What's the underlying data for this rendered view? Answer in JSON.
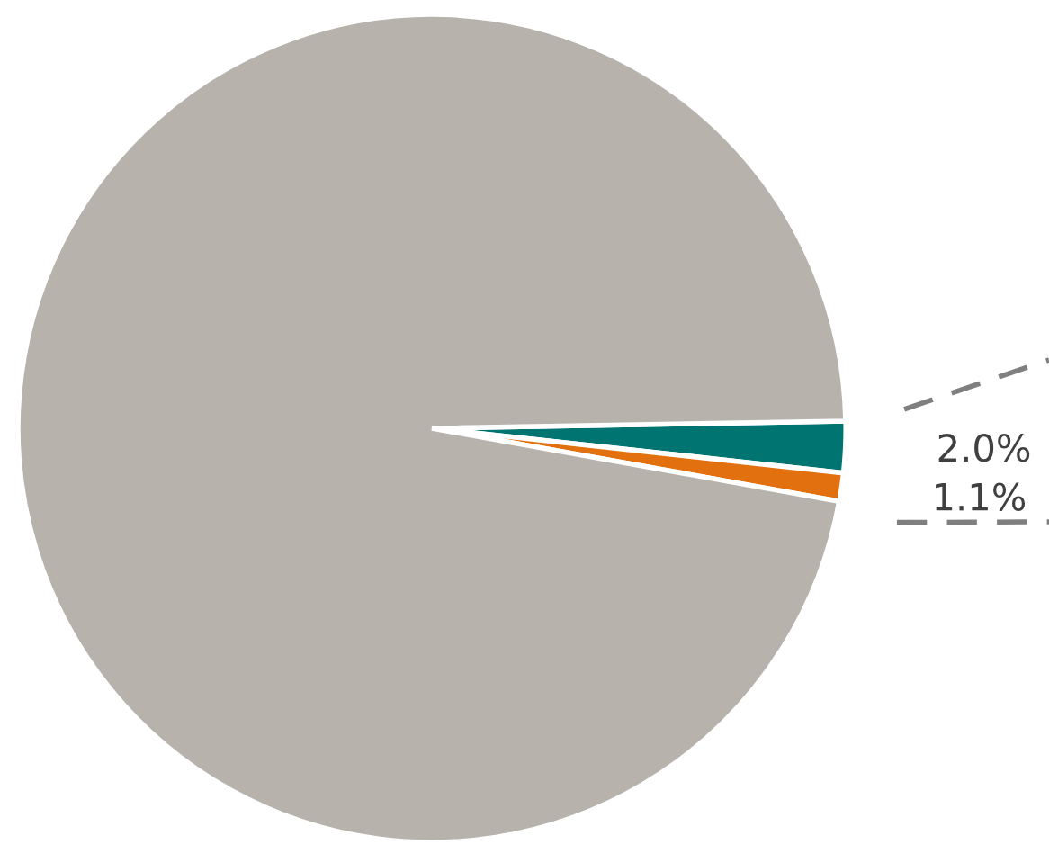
{
  "chart_data": {
    "type": "pie",
    "categories": [
      null,
      null,
      null
    ],
    "values": [
      2.0,
      1.1,
      96.9
    ],
    "colors": [
      "#007470",
      "#e2700e",
      "#b7b2ac"
    ],
    "value_labels": [
      "2.0%",
      "1.1%",
      null
    ],
    "legend": false
  }
}
